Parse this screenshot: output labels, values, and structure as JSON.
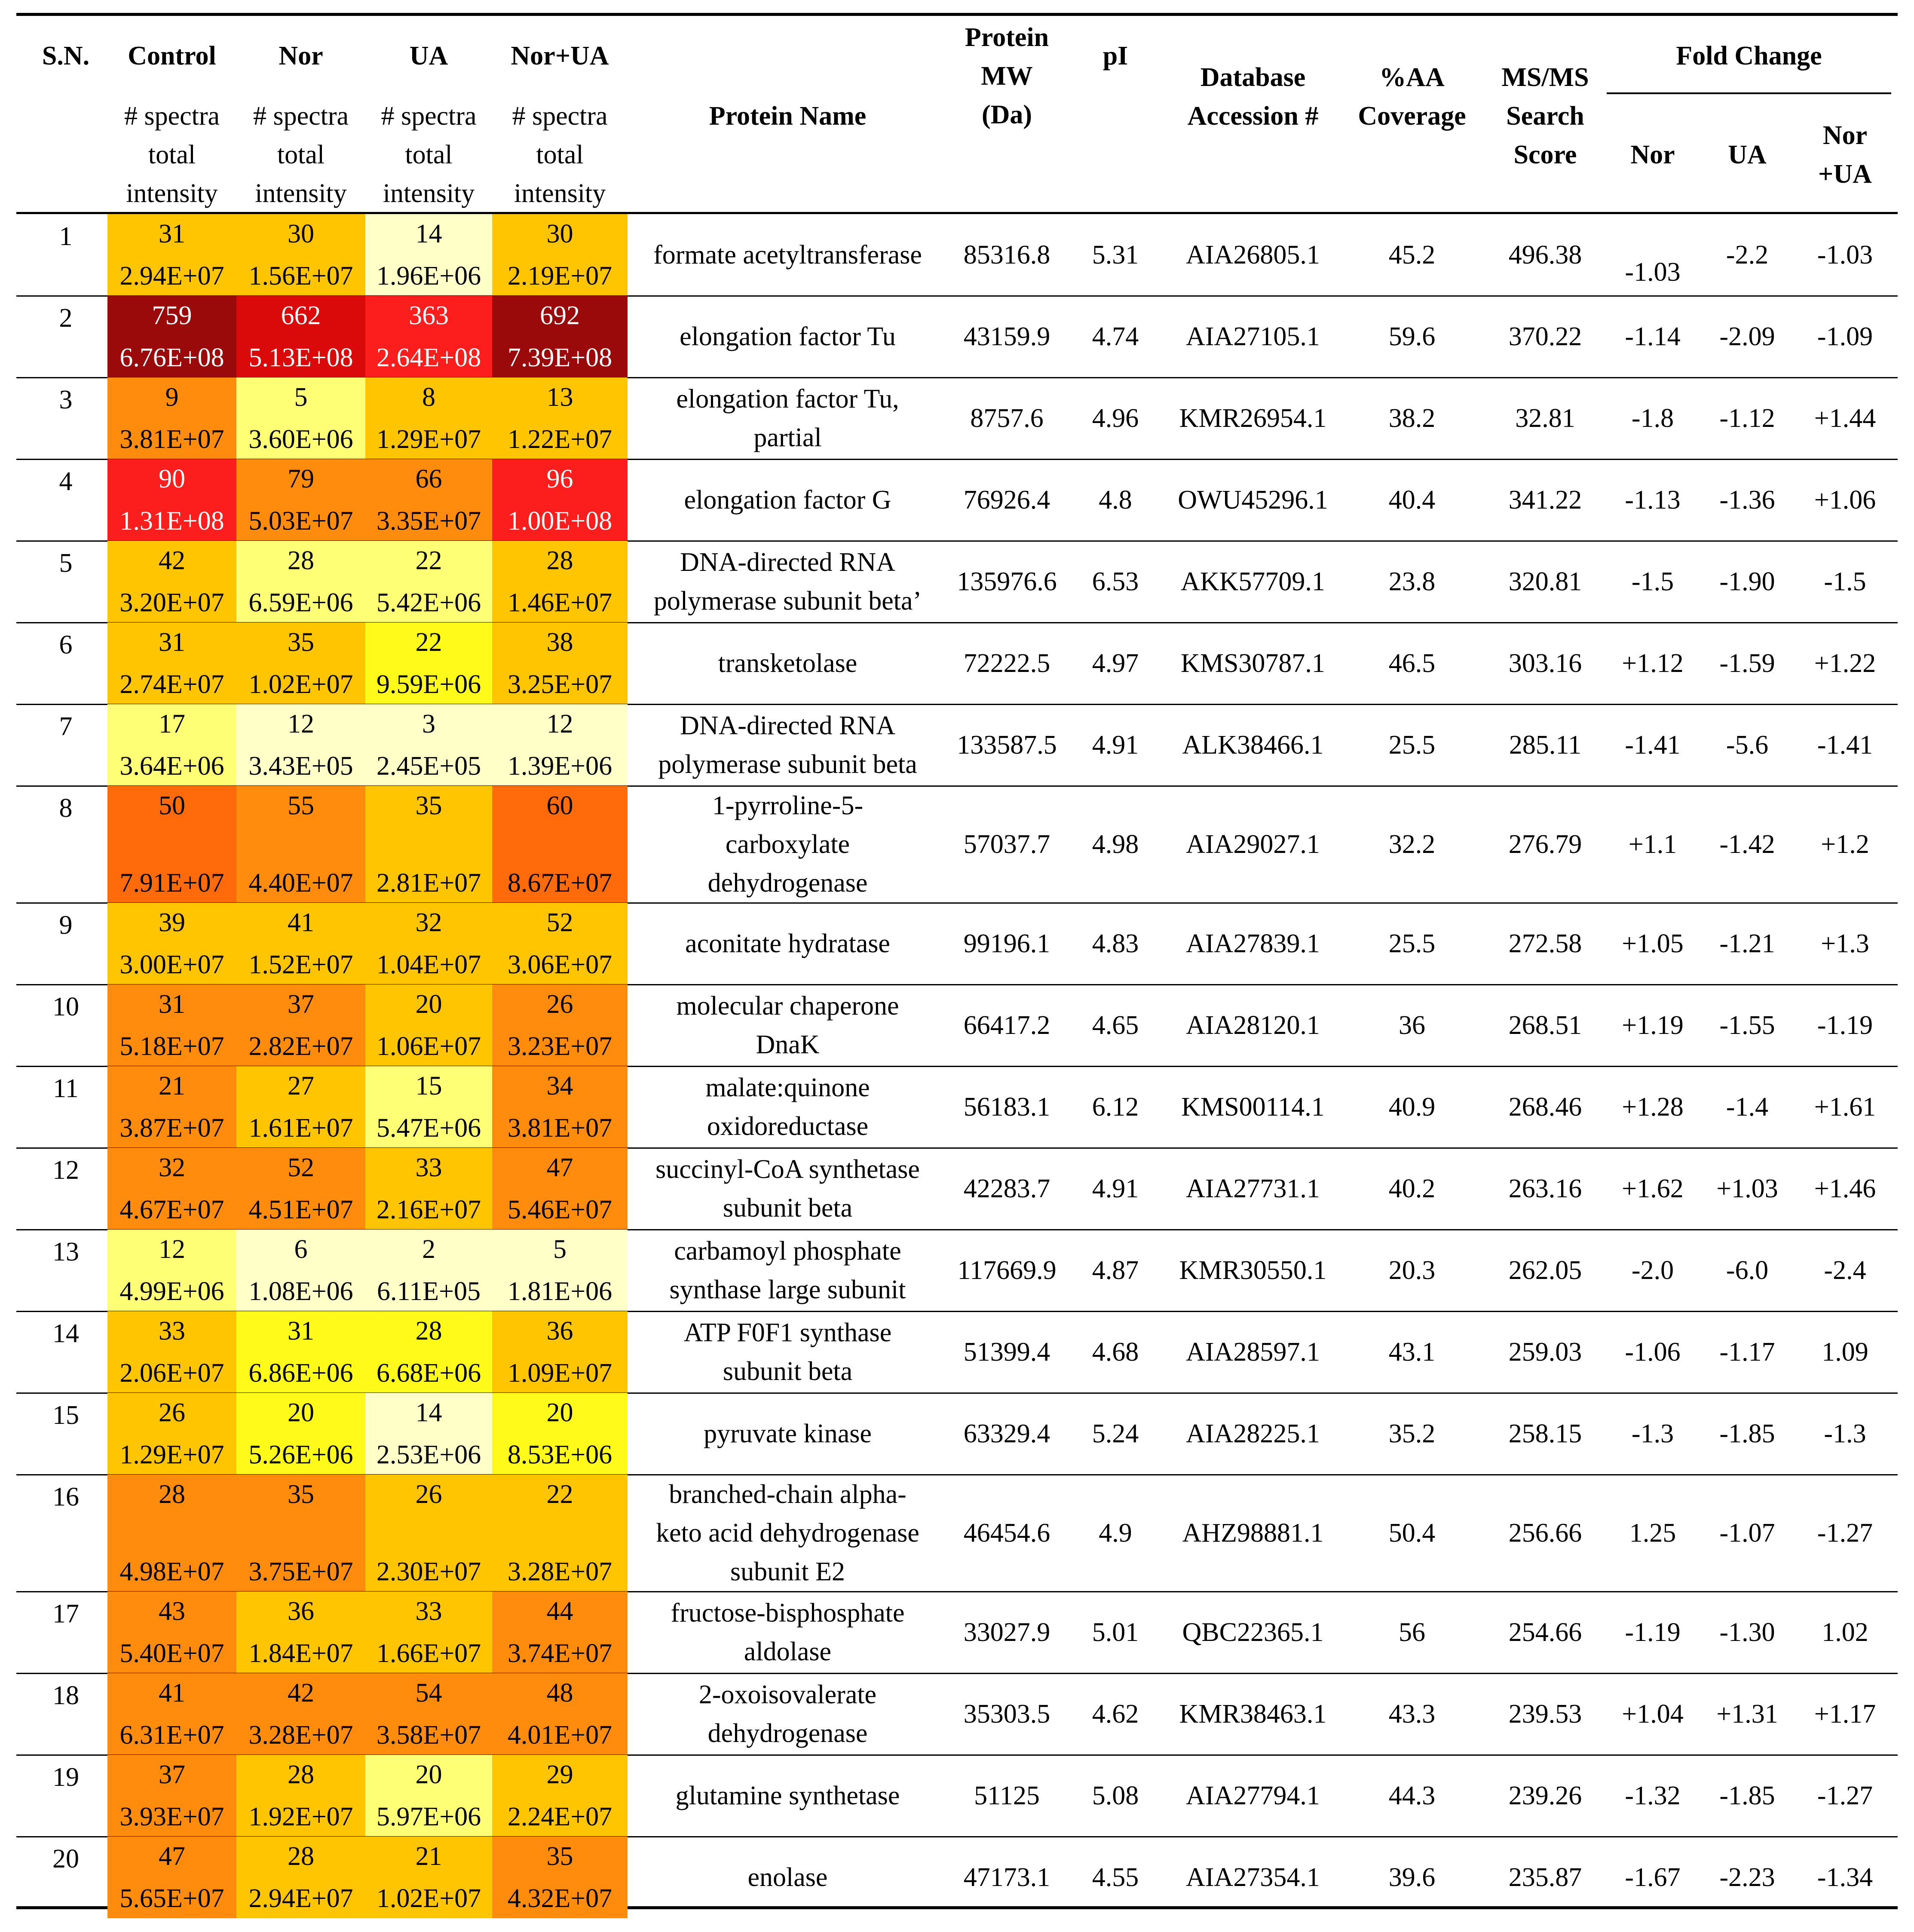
{
  "headers": {
    "sn": "S.N.",
    "control": "Control",
    "nor": "Nor",
    "ua": "UA",
    "norua": "Nor+UA",
    "spectra": "# spectra",
    "total": "total",
    "intensity": "intensity",
    "protein_name": "Protein Name",
    "mw_1": "Protein",
    "mw_2": "MW",
    "mw_3": "(Da)",
    "pi": "pI",
    "acc_1": "Database",
    "acc_2": "Accession #",
    "cov_1": "%AA",
    "cov_2": "Coverage",
    "score_1": "MS/MS",
    "score_2": "Search",
    "score_3": "Score",
    "fold_change": "Fold Change",
    "fc_nor": "Nor",
    "fc_ua": "UA",
    "fc_norua_1": "Nor",
    "fc_norua_2": "+UA"
  },
  "heat_colors": {
    "dark_red": "#9B0A0A",
    "red": "#DA0A0A",
    "bright_red": "#FC1D1D",
    "orange": "#FF8C0D",
    "dark_orange": "#FF6A0A",
    "amber": "#FFA800",
    "gold": "#FFC500",
    "yellow": "#FFFA19",
    "light_yellow": "#FFFF75",
    "pale_yellow": "#FFFFC8"
  },
  "rows": [
    {
      "sn": "1",
      "c": [
        "31",
        "2.94E+07"
      ],
      "n": [
        "30",
        "1.56E+07"
      ],
      "u": [
        "14",
        "1.96E+06"
      ],
      "nu": [
        "30",
        "2.19E+07"
      ],
      "name": [
        "formate acetyltransferase"
      ],
      "mw": "85316.8",
      "pi": "5.31",
      "acc": "AIA26805.1",
      "cov": "45.2",
      "score": "496.38",
      "fc_nor": "-1.03",
      "fc_ua": "-2.2",
      "fc_norua": "-1.03"
    },
    {
      "sn": "2",
      "c": [
        "759",
        "6.76E+08"
      ],
      "n": [
        "662",
        "5.13E+08"
      ],
      "u": [
        "363",
        "2.64E+08"
      ],
      "nu": [
        "692",
        "7.39E+08"
      ],
      "name": [
        "elongation factor Tu"
      ],
      "mw": "43159.9",
      "pi": "4.74",
      "acc": "AIA27105.1",
      "cov": "59.6",
      "score": "370.22",
      "fc_nor": "-1.14",
      "fc_ua": "-2.09",
      "fc_norua": "-1.09"
    },
    {
      "sn": "3",
      "c": [
        "9",
        "3.81E+07"
      ],
      "n": [
        "5",
        "3.60E+06"
      ],
      "u": [
        "8",
        "1.29E+07"
      ],
      "nu": [
        "13",
        "1.22E+07"
      ],
      "name": [
        "elongation factor Tu,",
        "partial"
      ],
      "mw": "8757.6",
      "pi": "4.96",
      "acc": "KMR26954.1",
      "cov": "38.2",
      "score": "32.81",
      "fc_nor": "-1.8",
      "fc_ua": "-1.12",
      "fc_norua": "+1.44"
    },
    {
      "sn": "4",
      "c": [
        "90",
        "1.31E+08"
      ],
      "n": [
        "79",
        "5.03E+07"
      ],
      "u": [
        "66",
        "3.35E+07"
      ],
      "nu": [
        "96",
        "1.00E+08"
      ],
      "name": [
        "elongation factor G"
      ],
      "mw": "76926.4",
      "pi": "4.8",
      "acc": "OWU45296.1",
      "cov": "40.4",
      "score": "341.22",
      "fc_nor": "-1.13",
      "fc_ua": "-1.36",
      "fc_norua": "+1.06"
    },
    {
      "sn": "5",
      "c": [
        "42",
        "3.20E+07"
      ],
      "n": [
        "28",
        "6.59E+06"
      ],
      "u": [
        "22",
        "5.42E+06"
      ],
      "nu": [
        "28",
        "1.46E+07"
      ],
      "name": [
        "DNA-directed RNA",
        "polymerase subunit beta’"
      ],
      "mw": "135976.6",
      "pi": "6.53",
      "acc": "AKK57709.1",
      "cov": "23.8",
      "score": "320.81",
      "fc_nor": "-1.5",
      "fc_ua": "-1.90",
      "fc_norua": "-1.5"
    },
    {
      "sn": "6",
      "c": [
        "31",
        "2.74E+07"
      ],
      "n": [
        "35",
        "1.02E+07"
      ],
      "u": [
        "22",
        "9.59E+06"
      ],
      "nu": [
        "38",
        "3.25E+07"
      ],
      "name": [
        "transketolase"
      ],
      "mw": "72222.5",
      "pi": "4.97",
      "acc": "KMS30787.1",
      "cov": "46.5",
      "score": "303.16",
      "fc_nor": "+1.12",
      "fc_ua": "-1.59",
      "fc_norua": "+1.22"
    },
    {
      "sn": "7",
      "c": [
        "17",
        "3.64E+06"
      ],
      "n": [
        "12",
        "3.43E+05"
      ],
      "u": [
        "3",
        "2.45E+05"
      ],
      "nu": [
        "12",
        "1.39E+06"
      ],
      "name": [
        "DNA-directed RNA",
        "polymerase subunit beta"
      ],
      "mw": "133587.5",
      "pi": "4.91",
      "acc": "ALK38466.1",
      "cov": "25.5",
      "score": "285.11",
      "fc_nor": "-1.41",
      "fc_ua": "-5.6",
      "fc_norua": "-1.41"
    },
    {
      "sn": "8",
      "c": [
        "50",
        "7.91E+07"
      ],
      "n": [
        "55",
        "4.40E+07"
      ],
      "u": [
        "35",
        "2.81E+07"
      ],
      "nu": [
        "60",
        "8.67E+07"
      ],
      "name": [
        "1-pyrroline-5-",
        "carboxylate",
        "dehydrogenase"
      ],
      "mw": "57037.7",
      "pi": "4.98",
      "acc": "AIA29027.1",
      "cov": "32.2",
      "score": "276.79",
      "fc_nor": "+1.1",
      "fc_ua": "-1.42",
      "fc_norua": "+1.2"
    },
    {
      "sn": "9",
      "c": [
        "39",
        "3.00E+07"
      ],
      "n": [
        "41",
        "1.52E+07"
      ],
      "u": [
        "32",
        "1.04E+07"
      ],
      "nu": [
        "52",
        "3.06E+07"
      ],
      "name": [
        "aconitate hydratase"
      ],
      "mw": "99196.1",
      "pi": "4.83",
      "acc": "AIA27839.1",
      "cov": "25.5",
      "score": "272.58",
      "fc_nor": "+1.05",
      "fc_ua": "-1.21",
      "fc_norua": "+1.3"
    },
    {
      "sn": "10",
      "c": [
        "31",
        "5.18E+07"
      ],
      "n": [
        "37",
        "2.82E+07"
      ],
      "u": [
        "20",
        "1.06E+07"
      ],
      "nu": [
        "26",
        "3.23E+07"
      ],
      "name": [
        "molecular chaperone",
        "DnaK"
      ],
      "mw": "66417.2",
      "pi": "4.65",
      "acc": "AIA28120.1",
      "cov": "36",
      "score": "268.51",
      "fc_nor": "+1.19",
      "fc_ua": "-1.55",
      "fc_norua": "-1.19"
    },
    {
      "sn": "11",
      "c": [
        "21",
        "3.87E+07"
      ],
      "n": [
        "27",
        "1.61E+07"
      ],
      "u": [
        "15",
        "5.47E+06"
      ],
      "nu": [
        "34",
        "3.81E+07"
      ],
      "name": [
        "malate:quinone",
        "oxidoreductase"
      ],
      "mw": "56183.1",
      "pi": "6.12",
      "acc": "KMS00114.1",
      "cov": "40.9",
      "score": "268.46",
      "fc_nor": "+1.28",
      "fc_ua": "-1.4",
      "fc_norua": "+1.61"
    },
    {
      "sn": "12",
      "c": [
        "32",
        "4.67E+07"
      ],
      "n": [
        "52",
        "4.51E+07"
      ],
      "u": [
        "33",
        "2.16E+07"
      ],
      "nu": [
        "47",
        "5.46E+07"
      ],
      "name": [
        "succinyl-CoA synthetase",
        "subunit beta"
      ],
      "mw": "42283.7",
      "pi": "4.91",
      "acc": "AIA27731.1",
      "cov": "40.2",
      "score": "263.16",
      "fc_nor": "+1.62",
      "fc_ua": "+1.03",
      "fc_norua": "+1.46"
    },
    {
      "sn": "13",
      "c": [
        "12",
        "4.99E+06"
      ],
      "n": [
        "6",
        "1.08E+06"
      ],
      "u": [
        "2",
        "6.11E+05"
      ],
      "nu": [
        "5",
        "1.81E+06"
      ],
      "name": [
        "carbamoyl phosphate",
        "synthase large subunit"
      ],
      "mw": "117669.9",
      "pi": "4.87",
      "acc": "KMR30550.1",
      "cov": "20.3",
      "score": "262.05",
      "fc_nor": "-2.0",
      "fc_ua": "-6.0",
      "fc_norua": "-2.4"
    },
    {
      "sn": "14",
      "c": [
        "33",
        "2.06E+07"
      ],
      "n": [
        "31",
        "6.86E+06"
      ],
      "u": [
        "28",
        "6.68E+06"
      ],
      "nu": [
        "36",
        "1.09E+07"
      ],
      "name": [
        "ATP F0F1 synthase",
        "subunit beta"
      ],
      "mw": "51399.4",
      "pi": "4.68",
      "acc": "AIA28597.1",
      "cov": "43.1",
      "score": "259.03",
      "fc_nor": "-1.06",
      "fc_ua": "-1.17",
      "fc_norua": "1.09"
    },
    {
      "sn": "15",
      "c": [
        "26",
        "1.29E+07"
      ],
      "n": [
        "20",
        "5.26E+06"
      ],
      "u": [
        "14",
        "2.53E+06"
      ],
      "nu": [
        "20",
        "8.53E+06"
      ],
      "name": [
        "pyruvate kinase"
      ],
      "mw": "63329.4",
      "pi": "5.24",
      "acc": "AIA28225.1",
      "cov": "35.2",
      "score": "258.15",
      "fc_nor": "-1.3",
      "fc_ua": "-1.85",
      "fc_norua": "-1.3"
    },
    {
      "sn": "16",
      "c": [
        "28",
        "4.98E+07"
      ],
      "n": [
        "35",
        "3.75E+07"
      ],
      "u": [
        "26",
        "2.30E+07"
      ],
      "nu": [
        "22",
        "3.28E+07"
      ],
      "name": [
        "branched-chain alpha-",
        "keto acid dehydrogenase",
        "subunit E2"
      ],
      "mw": "46454.6",
      "pi": "4.9",
      "acc": "AHZ98881.1",
      "cov": "50.4",
      "score": "256.66",
      "fc_nor": "1.25",
      "fc_ua": "-1.07",
      "fc_norua": "-1.27"
    },
    {
      "sn": "17",
      "c": [
        "43",
        "5.40E+07"
      ],
      "n": [
        "36",
        "1.84E+07"
      ],
      "u": [
        "33",
        "1.66E+07"
      ],
      "nu": [
        "44",
        "3.74E+07"
      ],
      "name": [
        "fructose-bisphosphate",
        "aldolase"
      ],
      "mw": "33027.9",
      "pi": "5.01",
      "acc": "QBC22365.1",
      "cov": "56",
      "score": "254.66",
      "fc_nor": "-1.19",
      "fc_ua": "-1.30",
      "fc_norua": "1.02"
    },
    {
      "sn": "18",
      "c": [
        "41",
        "6.31E+07"
      ],
      "n": [
        "42",
        "3.28E+07"
      ],
      "u": [
        "54",
        "3.58E+07"
      ],
      "nu": [
        "48",
        "4.01E+07"
      ],
      "name": [
        "2-oxoisovalerate",
        "dehydrogenase"
      ],
      "mw": "35303.5",
      "pi": "4.62",
      "acc": "KMR38463.1",
      "cov": "43.3",
      "score": "239.53",
      "fc_nor": "+1.04",
      "fc_ua": "+1.31",
      "fc_norua": "+1.17"
    },
    {
      "sn": "19",
      "c": [
        "37",
        "3.93E+07"
      ],
      "n": [
        "28",
        "1.92E+07"
      ],
      "u": [
        "20",
        "5.97E+06"
      ],
      "nu": [
        "29",
        "2.24E+07"
      ],
      "name": [
        "glutamine synthetase"
      ],
      "mw": "51125",
      "pi": "5.08",
      "acc": "AIA27794.1",
      "cov": "44.3",
      "score": "239.26",
      "fc_nor": "-1.32",
      "fc_ua": "-1.85",
      "fc_norua": "-1.27"
    },
    {
      "sn": "20",
      "c": [
        "47",
        "5.65E+07"
      ],
      "n": [
        "28",
        "2.94E+07"
      ],
      "u": [
        "21",
        "1.02E+07"
      ],
      "nu": [
        "35",
        "4.32E+07"
      ],
      "name": [
        "enolase"
      ],
      "mw": "47173.1",
      "pi": "4.55",
      "acc": "AIA27354.1",
      "cov": "39.6",
      "score": "235.87",
      "fc_nor": "-1.67",
      "fc_ua": "-2.23",
      "fc_norua": "-1.34"
    }
  ]
}
